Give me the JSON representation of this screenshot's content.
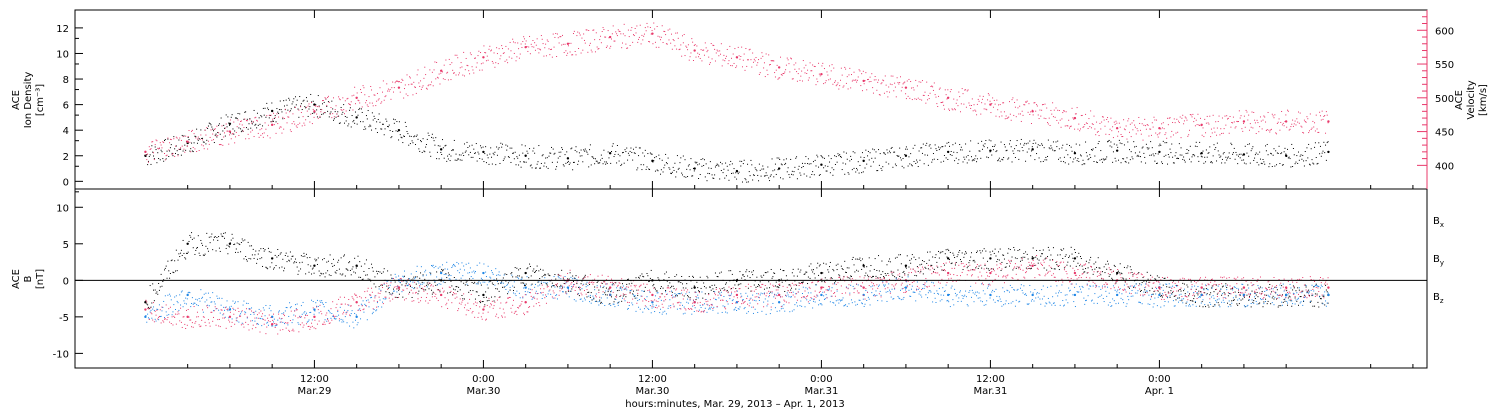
{
  "colors": {
    "black": "#000000",
    "red": "#e8386a",
    "blue": "#1f86e6",
    "axis": "#000000"
  },
  "chart_data": [
    {
      "type": "scatter",
      "panel": "top",
      "left_axis": {
        "label_lines": [
          "ACE",
          "Ion Density",
          "[cm⁻³]"
        ],
        "ylim": [
          -0.6,
          13.4
        ],
        "ticks": [
          0,
          2,
          4,
          6,
          8,
          10,
          12
        ],
        "color": "#000000"
      },
      "right_axis": {
        "label_lines": [
          "ACE",
          "Velocity",
          "[km/s]"
        ],
        "ylim": [
          365,
          630
        ],
        "ticks": [
          400,
          450,
          500,
          550,
          600
        ],
        "color": "#e8386a"
      },
      "series": [
        {
          "axis": "left",
          "color": "#000000",
          "x_hours": [
            0,
            3,
            6,
            9,
            12,
            15,
            18,
            21,
            24,
            27,
            30,
            33,
            36,
            39,
            42,
            45,
            48,
            51,
            54,
            57,
            60,
            63,
            66,
            69,
            72,
            75,
            78,
            81,
            84
          ],
          "values": [
            2.0,
            3.0,
            4.5,
            5.5,
            6.0,
            5.0,
            4.0,
            2.5,
            2.3,
            2.0,
            1.8,
            2.2,
            1.6,
            1.0,
            0.8,
            1.0,
            1.3,
            1.6,
            2.0,
            2.3,
            2.4,
            2.5,
            2.2,
            2.4,
            2.3,
            2.2,
            2.1,
            2.0,
            2.3
          ]
        },
        {
          "axis": "right",
          "color": "#e8386a",
          "x_hours": [
            0,
            3,
            6,
            9,
            12,
            15,
            18,
            21,
            24,
            27,
            30,
            33,
            36,
            39,
            42,
            45,
            48,
            51,
            54,
            57,
            60,
            63,
            66,
            69,
            72,
            75,
            78,
            81,
            84
          ],
          "values": [
            420,
            435,
            450,
            460,
            480,
            500,
            515,
            540,
            560,
            575,
            580,
            590,
            595,
            570,
            560,
            545,
            535,
            525,
            515,
            500,
            490,
            480,
            470,
            455,
            455,
            460,
            465,
            465,
            465
          ]
        }
      ]
    },
    {
      "type": "scatter",
      "panel": "bottom",
      "left_axis": {
        "label_lines": [
          "ACE",
          "B",
          "[nT]"
        ],
        "ylim": [
          -12,
          12.5
        ],
        "ticks": [
          -10,
          -5,
          0,
          5,
          10
        ]
      },
      "zero_line": 0,
      "series": [
        {
          "name": "Bx",
          "label": "B",
          "subscript": "x",
          "color": "#000000",
          "x_hours": [
            0,
            3,
            6,
            9,
            12,
            15,
            18,
            21,
            24,
            27,
            30,
            33,
            36,
            39,
            42,
            45,
            48,
            51,
            54,
            57,
            60,
            63,
            66,
            69,
            72,
            75,
            78,
            81,
            84
          ],
          "values": [
            -3,
            5,
            5,
            3,
            2,
            2,
            -1,
            0,
            -2,
            1,
            0,
            -2,
            0,
            -1,
            0,
            0,
            1,
            2,
            2,
            3,
            3,
            3,
            3,
            1,
            -1,
            -2,
            -2,
            -2,
            -2
          ]
        },
        {
          "name": "By",
          "label": "B",
          "subscript": "y",
          "color": "#1f86e6",
          "x_hours": [
            0,
            3,
            6,
            9,
            12,
            15,
            18,
            21,
            24,
            27,
            30,
            33,
            36,
            39,
            42,
            45,
            48,
            51,
            54,
            57,
            60,
            63,
            66,
            69,
            72,
            75,
            78,
            81,
            84
          ],
          "values": [
            -5,
            -2,
            -4,
            -5,
            -4,
            -5,
            0,
            1,
            1,
            -1,
            -1,
            -2,
            -3,
            -3,
            -3,
            -3,
            -2,
            -2,
            -1,
            -2,
            -2,
            -2,
            -2,
            -2,
            -2,
            -2,
            -2,
            -2,
            -2
          ]
        },
        {
          "name": "Bz",
          "label": "B",
          "subscript": "z",
          "color": "#e8386a",
          "x_hours": [
            0,
            3,
            6,
            9,
            12,
            15,
            18,
            21,
            24,
            27,
            30,
            33,
            36,
            39,
            42,
            45,
            48,
            51,
            54,
            57,
            60,
            63,
            66,
            69,
            72,
            75,
            78,
            81,
            84
          ],
          "values": [
            -4,
            -5,
            -5,
            -6,
            -5,
            -3,
            -1,
            -2,
            -4,
            -3,
            0,
            -1,
            -2,
            -3,
            -2,
            -2,
            -1,
            -1,
            0,
            1,
            1,
            2,
            1,
            0,
            -1,
            -1,
            -1,
            -1,
            -1
          ]
        }
      ]
    }
  ],
  "x_axis": {
    "xlim_hours": [
      -5,
      91
    ],
    "ticks": [
      {
        "hour": 12,
        "time": "12:00",
        "date": "Mar.29"
      },
      {
        "hour": 24,
        "time": "0:00",
        "date": "Mar.30"
      },
      {
        "hour": 36,
        "time": "12:00",
        "date": "Mar.30"
      },
      {
        "hour": 48,
        "time": "0:00",
        "date": "Mar.31"
      },
      {
        "hour": 60,
        "time": "12:00",
        "date": "Mar.31"
      },
      {
        "hour": 72,
        "time": "0:00",
        "date": "Apr. 1"
      }
    ],
    "title": "hours:minutes, Mar. 29, 2013 – Apr.  1, 2013"
  }
}
